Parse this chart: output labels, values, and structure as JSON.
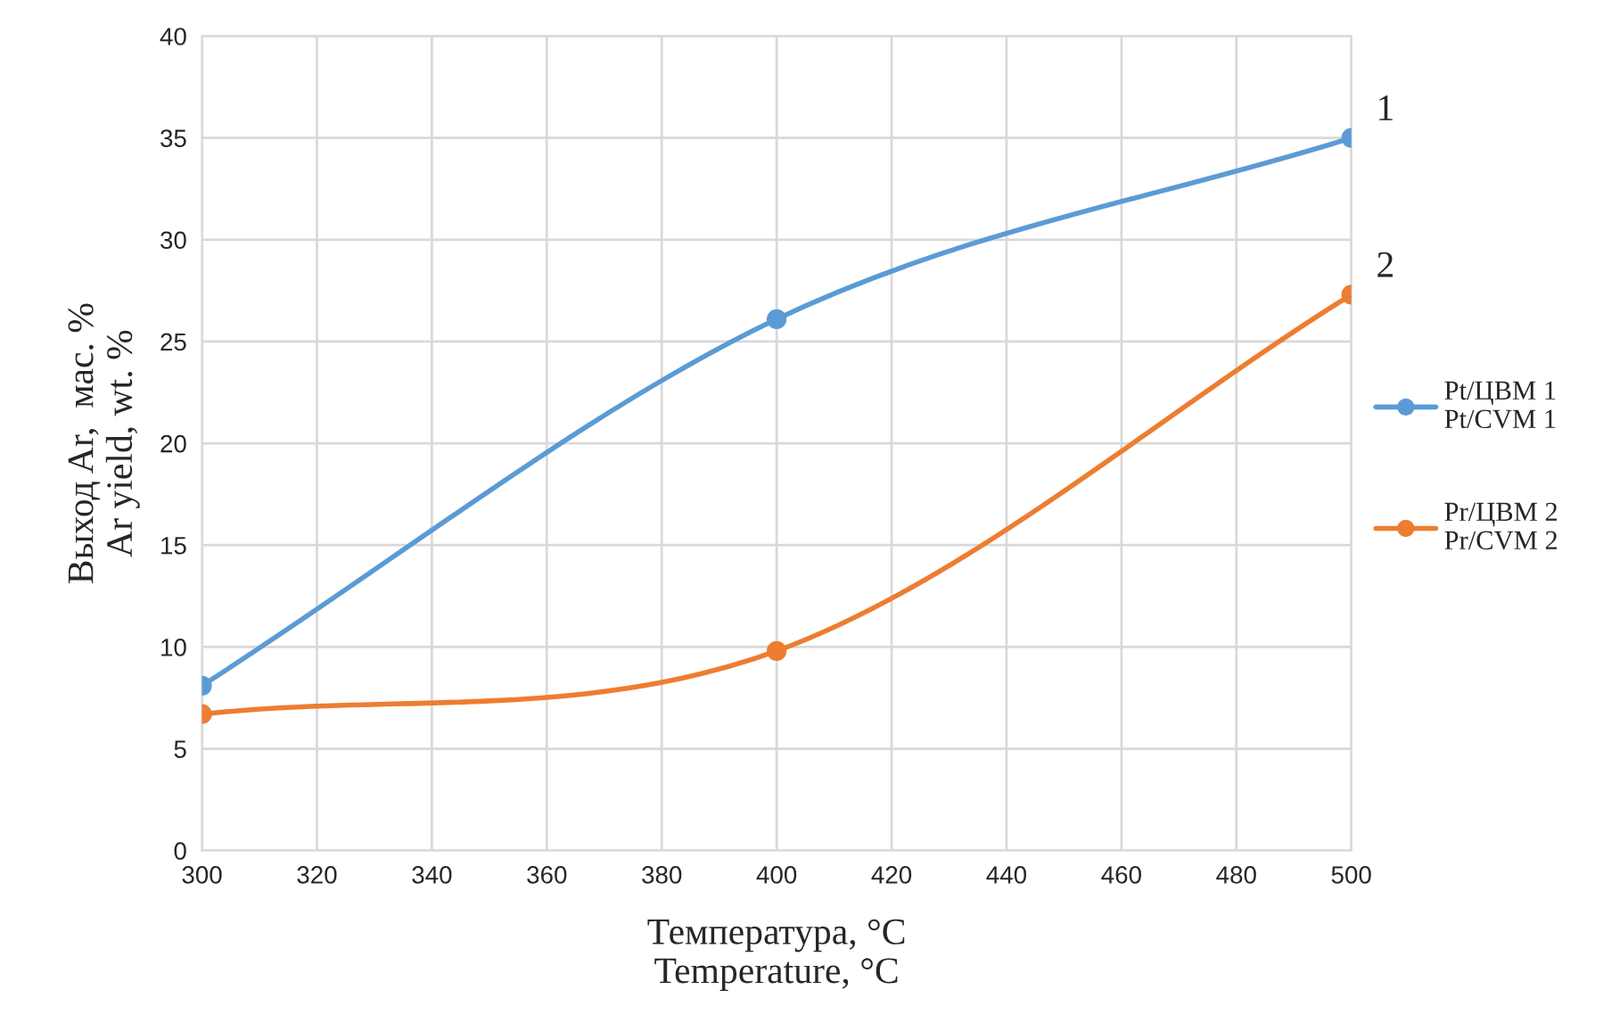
{
  "chart_data": {
    "type": "line",
    "xlabel": "Температура, °C\nTemperature, °C",
    "ylabel": "Выход Ar,  мас. %\nAr yield, wt. %",
    "x": [
      300,
      400,
      500
    ],
    "series": [
      {
        "name": "Pt/ЦВМ 1\nPt/CVM 1",
        "color": "#5b9bd5",
        "values": [
          8.1,
          26.1,
          35.0
        ]
      },
      {
        "name": "Pr/ЦВМ 2\nPr/CVM 2",
        "color": "#ed7d31",
        "values": [
          6.7,
          9.8,
          27.3
        ]
      }
    ],
    "annotations": [
      {
        "text": "1",
        "x": 500,
        "y": 35.0
      },
      {
        "text": "2",
        "x": 500,
        "y": 27.3
      }
    ],
    "xlim": [
      300,
      500
    ],
    "xticks": [
      300,
      320,
      340,
      360,
      380,
      400,
      420,
      440,
      460,
      480,
      500
    ],
    "ylim": [
      0,
      40
    ],
    "yticks": [
      0,
      5,
      10,
      15,
      20,
      25,
      30,
      35,
      40
    ],
    "grid": true,
    "legend": "right",
    "marker": "circle",
    "line_style": "solid"
  }
}
